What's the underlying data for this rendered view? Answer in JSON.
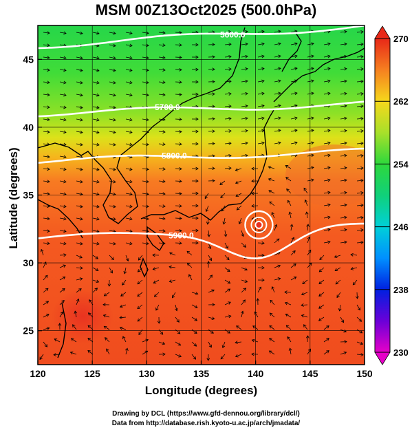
{
  "title": "MSM 00Z13Oct2025 (500.0hPa)",
  "axes": {
    "xlabel": "Longitude (degrees)",
    "ylabel": "Latitude  (degrees)",
    "xlim": [
      120,
      150
    ],
    "ylim": [
      22.5,
      47.5
    ],
    "xticks": [
      "120",
      "125",
      "130",
      "135",
      "140",
      "145",
      "150"
    ],
    "yticks": [
      "25",
      "30",
      "35",
      "40",
      "45"
    ]
  },
  "colorbar": {
    "ticks": [
      "230",
      "238",
      "246",
      "254",
      "262",
      "270"
    ],
    "min": 230,
    "max": 270
  },
  "contours": [
    {
      "label": "5600.0",
      "lat": 46.0
    },
    {
      "label": "5700.0",
      "lat": 41.0
    },
    {
      "label": "5800.0",
      "lat": 37.5
    },
    {
      "label": "5900.0",
      "lat": 31.8
    }
  ],
  "cyclone": {
    "lon": 140.3,
    "lat": 32.8
  },
  "footer": {
    "line1": "Drawing by DCL (https://www.gfd-dennou.org/library/dcl/)",
    "line2": "Data from http://database.rish.kyoto-u.ac.jp/arch/jmadata/"
  }
}
